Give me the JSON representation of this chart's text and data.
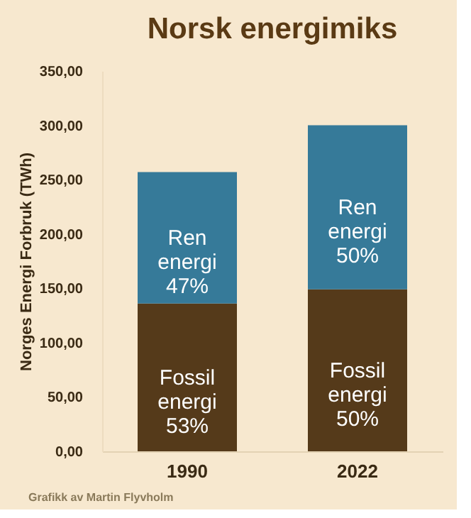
{
  "chart_data": {
    "type": "bar",
    "title": "Norsk energimiks",
    "ylabel": "Norges Energi Forbruk (TWh)",
    "categories": [
      "1990",
      "2022"
    ],
    "stacked": true,
    "series": [
      {
        "color": "#553a1a",
        "values": [
          136,
          149
        ],
        "value_labels": [
          "Fossil energi 53%",
          "Fossil energi 50%"
        ]
      },
      {
        "color": "#367a99",
        "values": [
          121,
          151
        ],
        "value_labels": [
          "Ren energi 47%",
          "Ren energi 50%"
        ]
      }
    ],
    "ylim": [
      0,
      350
    ],
    "yticks": [
      {
        "value": 0,
        "label": "0,00"
      },
      {
        "value": 50,
        "label": "50,00"
      },
      {
        "value": 100,
        "label": "100,00"
      },
      {
        "value": 150,
        "label": "150,00"
      },
      {
        "value": 200,
        "label": "200,00"
      },
      {
        "value": 250,
        "label": "250,00"
      },
      {
        "value": 300,
        "label": "300,00"
      },
      {
        "value": 350,
        "label": "350,00"
      }
    ],
    "grid": false,
    "annotations": [
      "Grafikk av Martin Flyvholm"
    ]
  }
}
